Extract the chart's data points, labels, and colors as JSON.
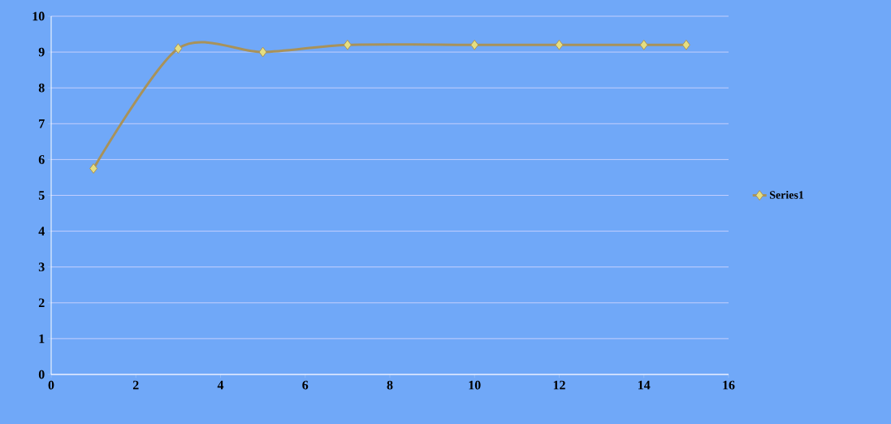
{
  "chart_data": {
    "type": "line",
    "x": [
      1,
      3,
      5,
      7,
      10,
      12,
      14,
      15
    ],
    "series": [
      {
        "name": "Series1",
        "color": "#a8925a",
        "values": [
          5.75,
          9.1,
          9.0,
          9.2,
          9.2,
          9.2,
          9.2,
          9.2
        ]
      }
    ],
    "xlim": [
      0,
      16
    ],
    "xticks": [
      0,
      2,
      4,
      6,
      8,
      10,
      12,
      14,
      16
    ],
    "ylim": [
      0,
      10
    ],
    "yticks": [
      0,
      1,
      2,
      3,
      4,
      5,
      6,
      7,
      8,
      9,
      10
    ],
    "grid": "y",
    "legend": "right",
    "marker": "diamond",
    "line_style": "solid"
  }
}
